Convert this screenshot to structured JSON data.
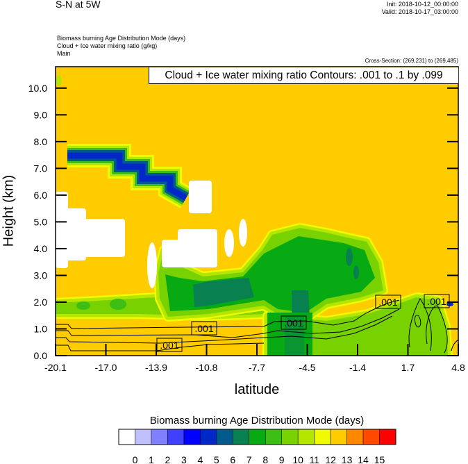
{
  "header": {
    "title": "S-N at 5W",
    "init": "Init: 2018-10-12_00:00:00",
    "valid": "Valid: 2018-10-17_03:00:00",
    "fields": [
      "Biomass burning Age Distribution Mode   (days)",
      "Cloud + Ice water mixing ratio   (g/kg)",
      "Main"
    ],
    "cross_section": "Cross-Section: (269,231) to (269,485)"
  },
  "chart_data": {
    "type": "heatmap",
    "subtype": "filled contour with line contour overlay",
    "xlabel": "latitude",
    "ylabel": "Height (km)",
    "xlim": [
      -20.1,
      4.8
    ],
    "ylim": [
      0,
      10.8
    ],
    "x_ticks": [
      "-20.1",
      "-17.0",
      "-13.9",
      "-10.8",
      "-7.7",
      "-4.5",
      "-1.4",
      "1.7",
      "4.8"
    ],
    "y_ticks": [
      "0.0",
      "1.0",
      "2.0",
      "3.0",
      "4.0",
      "5.0",
      "6.0",
      "7.0",
      "8.0",
      "9.0",
      "10.0"
    ],
    "contour_title": "Cloud + Ice water mixing ratio Contours: .001 to .1 by .099",
    "contour_labels": [
      ".001",
      ".001",
      ".001",
      ".001",
      ".001"
    ],
    "colorbar": {
      "title": "Biomass burning Age Distribution Mode  (days)",
      "levels": [
        "0",
        "1",
        "2",
        "3",
        "4",
        "5",
        "6",
        "7",
        "8",
        "9",
        "10",
        "11",
        "12",
        "13",
        "14",
        "15"
      ],
      "colors": [
        "#ffffff",
        "#c0c0ff",
        "#8080ff",
        "#4040ff",
        "#0000ff",
        "#0028c8",
        "#005a8c",
        "#088050",
        "#08aa14",
        "#3cbe14",
        "#78d200",
        "#b4e600",
        "#f0fa00",
        "#ffcc00",
        "#ff8800",
        "#ff4800",
        "#ff0000"
      ]
    },
    "background_value_range": [
      12,
      13
    ]
  }
}
